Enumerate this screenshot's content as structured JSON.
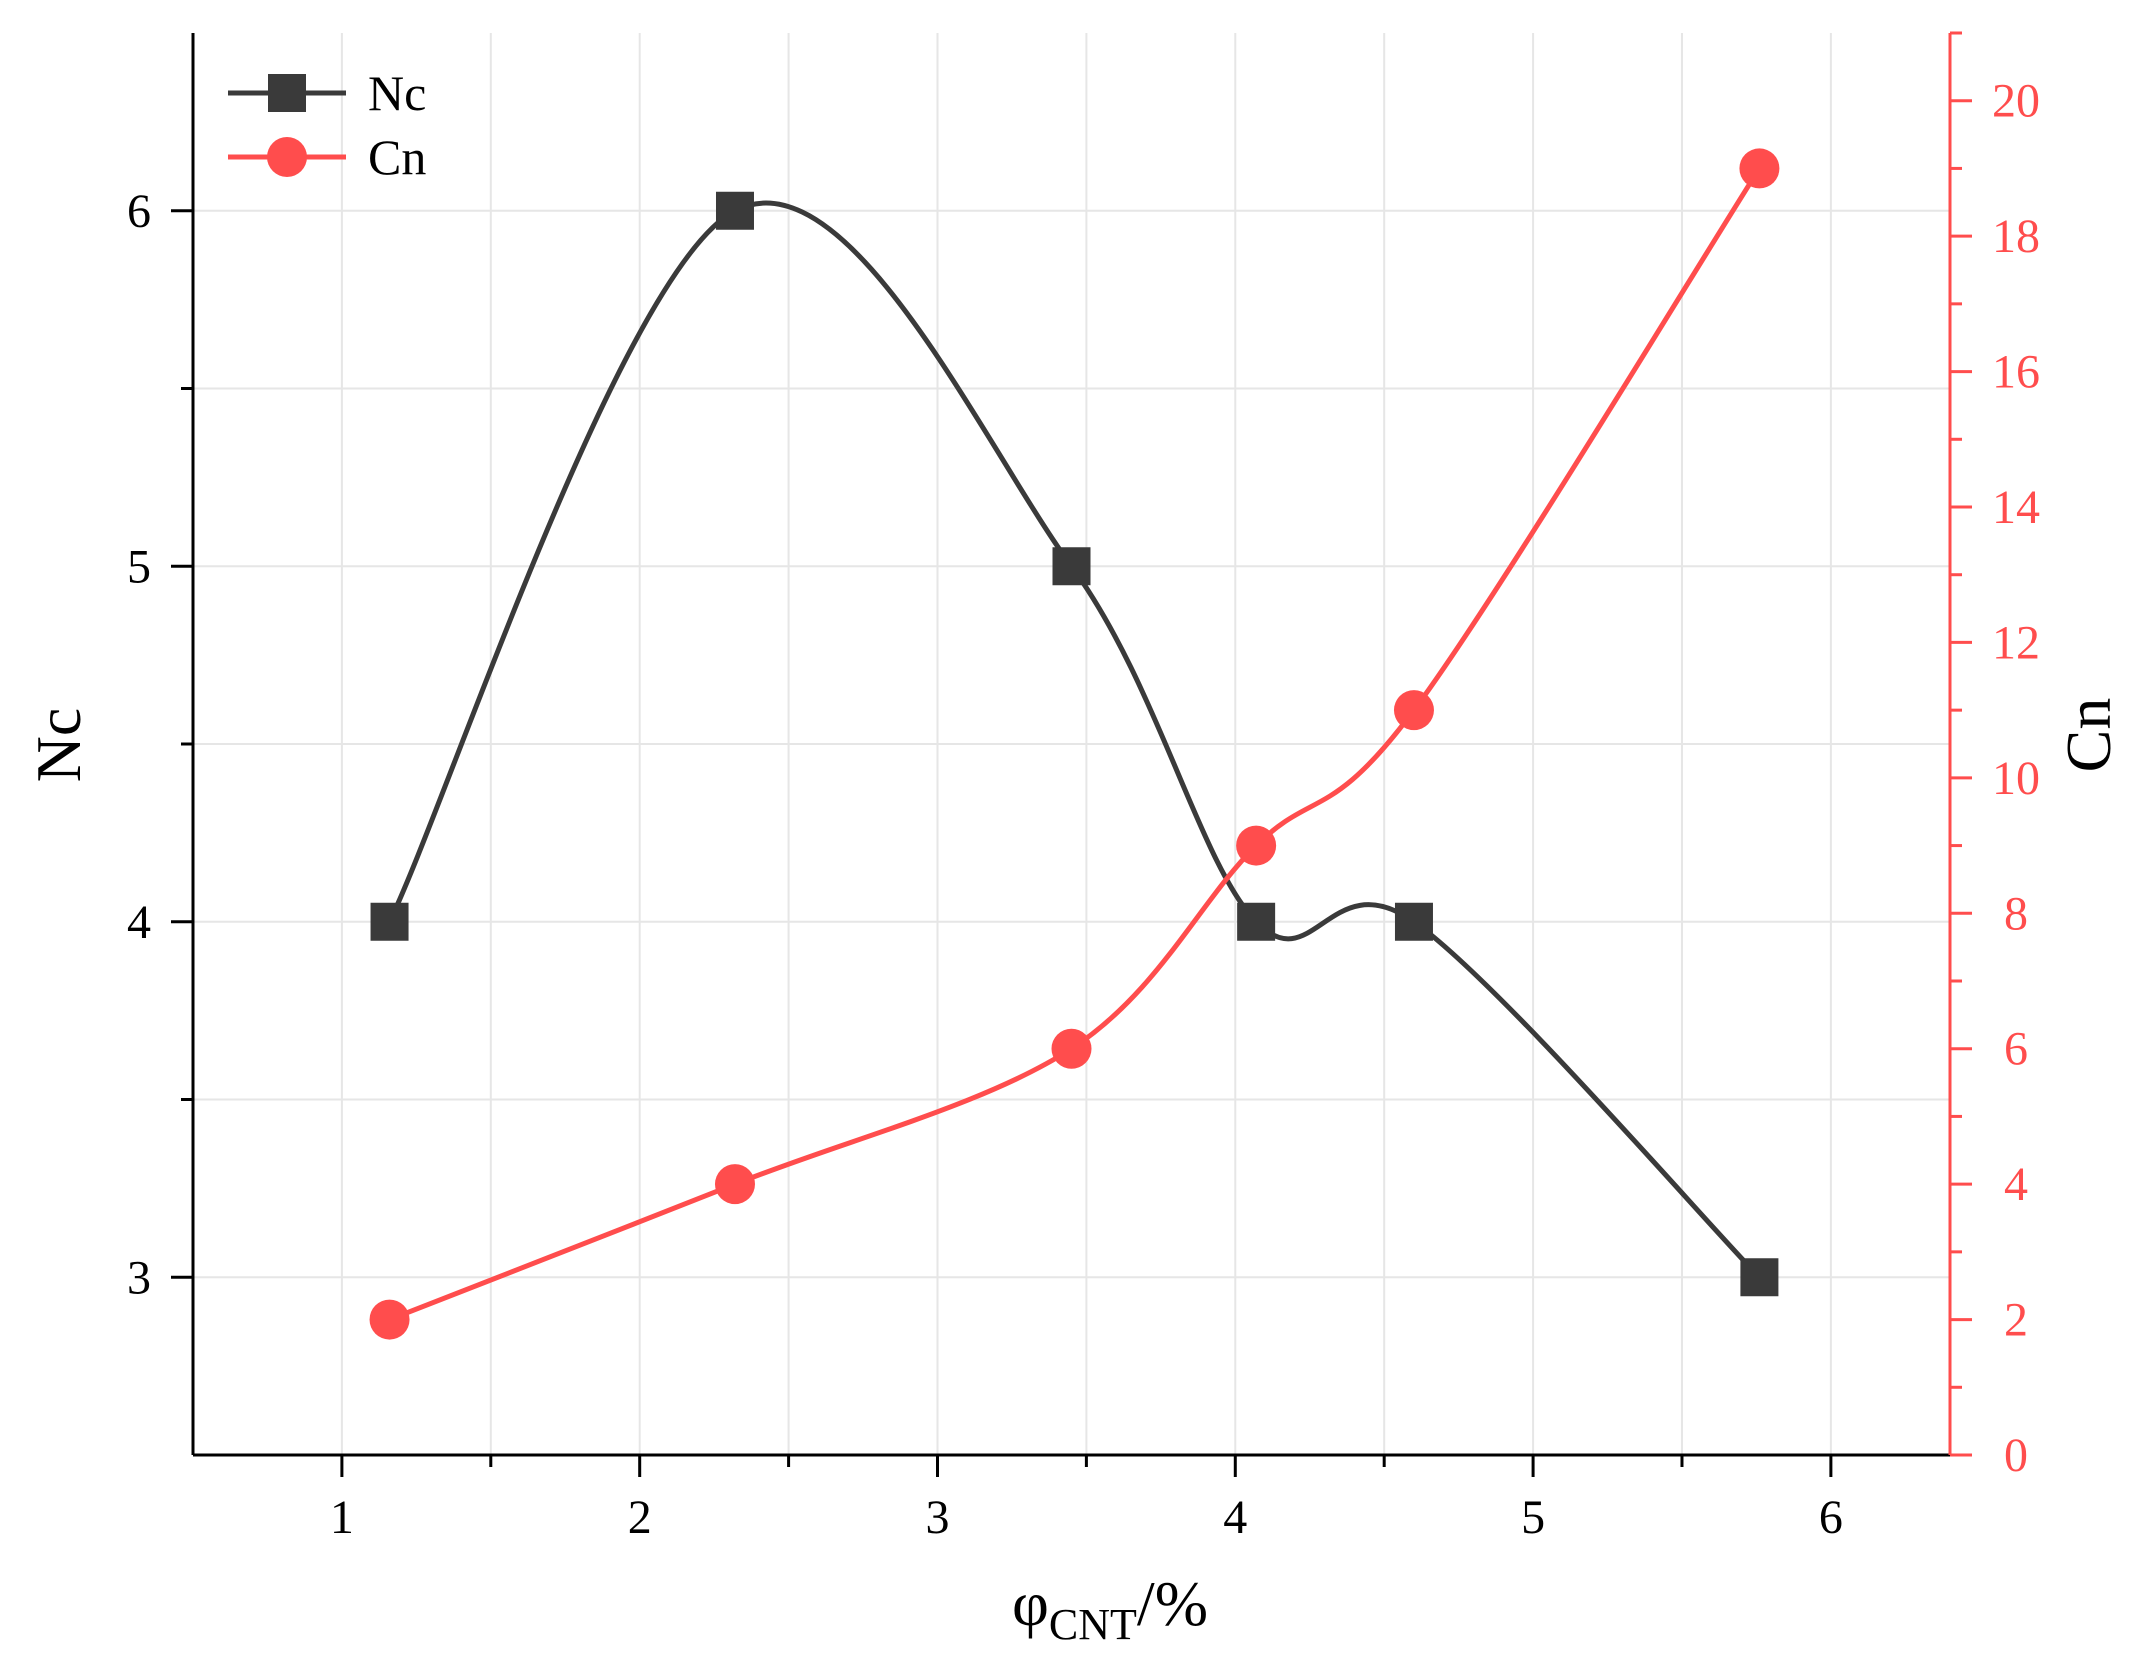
{
  "chart_data": {
    "type": "line",
    "title": "",
    "x": [
      1.16,
      2.32,
      3.45,
      4.07,
      4.6,
      5.76
    ],
    "xlim": [
      0.5,
      6.4
    ],
    "xticks": [
      1,
      2,
      3,
      4,
      5,
      6
    ],
    "xlabel": {
      "main": "φ",
      "sub": "CNT",
      "suffix": "/%"
    },
    "ylabel_left": "Nc",
    "ylabel_right": "Cn",
    "ylim_left": [
      2.5,
      6.5
    ],
    "yticks_left": [
      3,
      4,
      5,
      6
    ],
    "ylim_right": [
      0,
      21
    ],
    "yticks_right": [
      0,
      2,
      4,
      6,
      8,
      10,
      12,
      14,
      16,
      18,
      20
    ],
    "grid": true,
    "legend_position": "top-left",
    "series": [
      {
        "name": "Nc",
        "axis": "left",
        "marker": "square",
        "color": "#3a3a3a",
        "values": [
          4,
          6,
          5,
          4,
          4,
          3
        ]
      },
      {
        "name": "Cn",
        "axis": "right",
        "marker": "circle",
        "color": "#ff3333",
        "values": [
          2,
          4,
          6,
          9,
          11,
          19
        ]
      }
    ]
  }
}
